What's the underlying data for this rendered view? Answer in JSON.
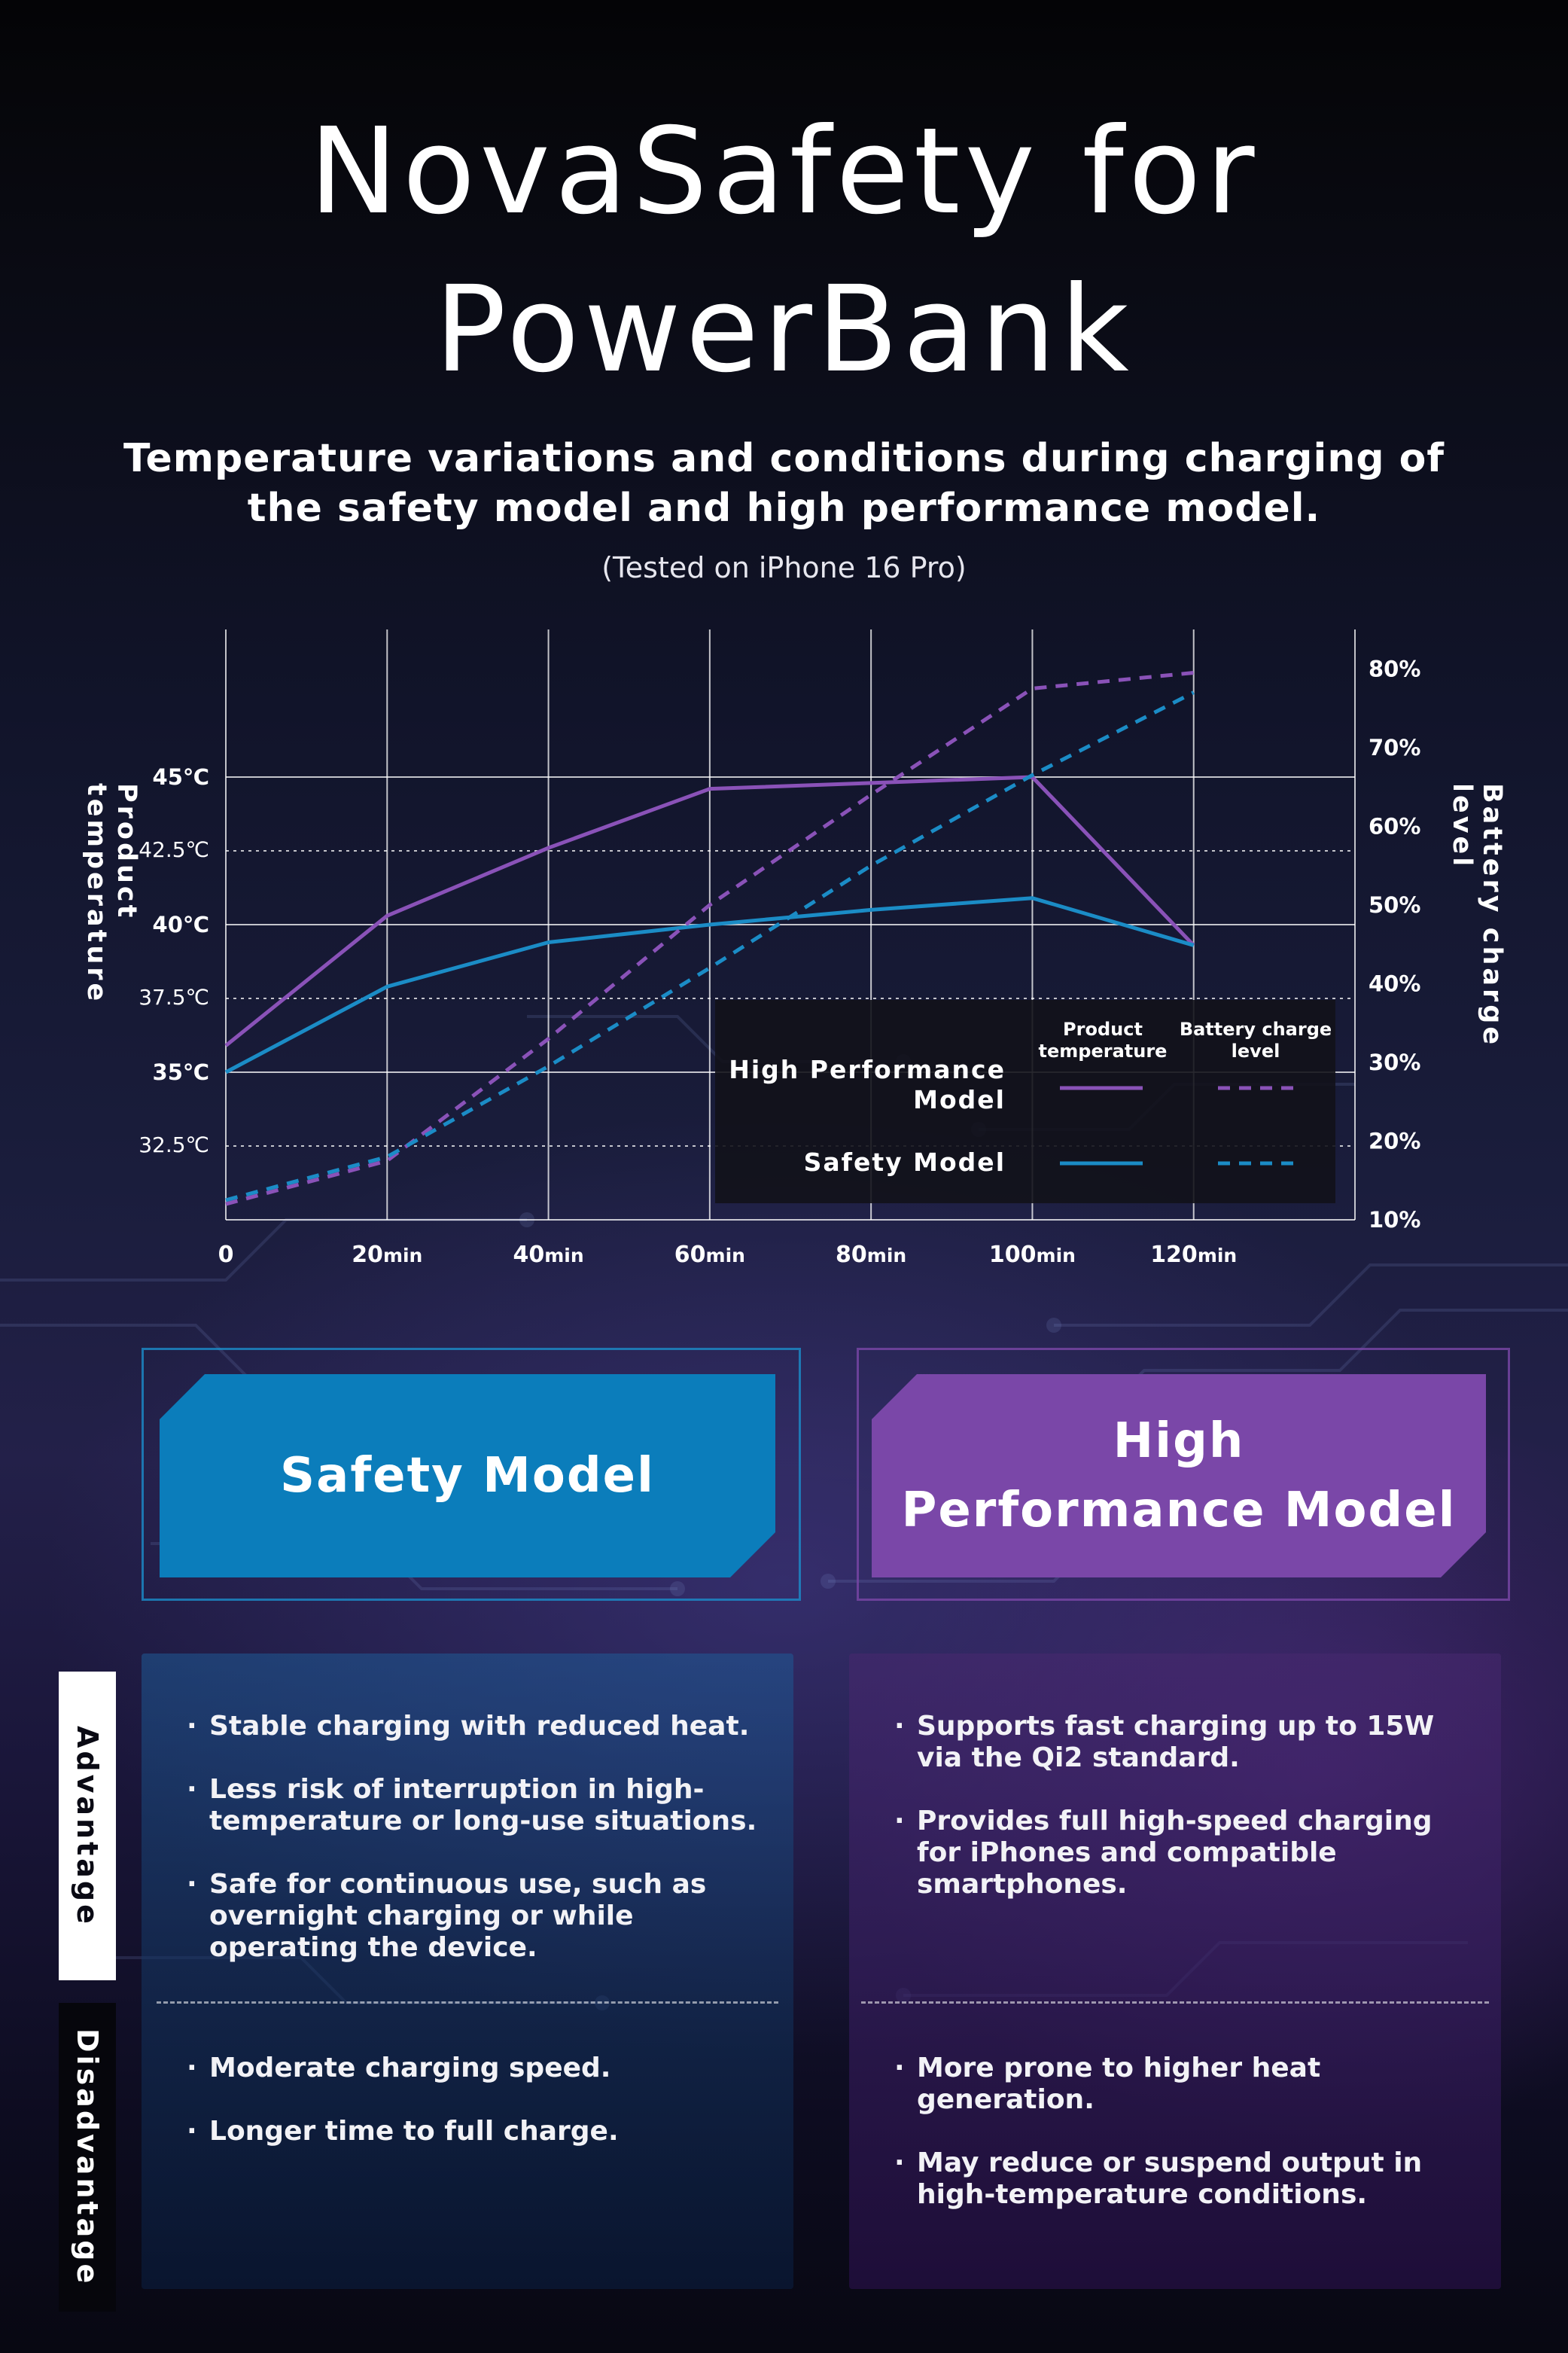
{
  "header": {
    "title_line1": "NovaSafety for",
    "title_line2": "PowerBank",
    "subtitle_line1": "Temperature variations and conditions during charging of",
    "subtitle_line2": "the safety model and high performance model.",
    "test_note": "(Tested on iPhone 16 Pro)"
  },
  "chart_data": {
    "type": "line",
    "x": [
      0,
      20,
      40,
      60,
      80,
      100,
      120
    ],
    "x_tick_labels": [
      {
        "num": "0",
        "unit": ""
      },
      {
        "num": "20",
        "unit": "min"
      },
      {
        "num": "40",
        "unit": "min"
      },
      {
        "num": "60",
        "unit": "min"
      },
      {
        "num": "80",
        "unit": "min"
      },
      {
        "num": "100",
        "unit": "min"
      },
      {
        "num": "120",
        "unit": "min"
      }
    ],
    "xlim": [
      0,
      140
    ],
    "left_axis": {
      "label": "Product temperature",
      "range": [
        30,
        50
      ],
      "ticks": [
        {
          "value": 45,
          "label": "45℃"
        },
        {
          "value": 42.5,
          "label": "42.5℃"
        },
        {
          "value": 40,
          "label": "40℃"
        },
        {
          "value": 37.5,
          "label": "37.5℃"
        },
        {
          "value": 35,
          "label": "35℃"
        },
        {
          "value": 32.5,
          "label": "32.5℃"
        }
      ]
    },
    "right_axis": {
      "label": "Battery charge level",
      "range": [
        10,
        85
      ],
      "ticks": [
        {
          "value": 80,
          "label": "80%"
        },
        {
          "value": 70,
          "label": "70%"
        },
        {
          "value": 60,
          "label": "60%"
        },
        {
          "value": 50,
          "label": "50%"
        },
        {
          "value": 40,
          "label": "40%"
        },
        {
          "value": 30,
          "label": "30%"
        },
        {
          "value": 20,
          "label": "20%"
        },
        {
          "value": 10,
          "label": "10%"
        }
      ]
    },
    "series": [
      {
        "name": "High Performance Model – Product temperature",
        "axis": "left",
        "style": "solid",
        "color": "#8a52b8",
        "values": [
          35.9,
          40.3,
          42.6,
          44.6,
          44.8,
          45.0,
          39.3
        ]
      },
      {
        "name": "Safety Model – Product temperature",
        "axis": "left",
        "style": "solid",
        "color": "#1b8cc6",
        "values": [
          35.0,
          37.9,
          39.4,
          40.0,
          40.5,
          40.9,
          39.3
        ]
      },
      {
        "name": "High Performance Model – Battery charge level",
        "axis": "right",
        "style": "dashed",
        "color": "#8a52b8",
        "values": [
          12.0,
          17.5,
          33.0,
          50.0,
          64.0,
          77.5,
          79.5
        ]
      },
      {
        "name": "Safety Model – Battery charge level",
        "axis": "right",
        "style": "dashed",
        "color": "#1b8cc6",
        "values": [
          12.5,
          18.0,
          29.5,
          42.0,
          55.0,
          66.5,
          77.0
        ]
      }
    ],
    "legend": {
      "col_temp": "Product temperature",
      "col_charge": "Battery charge level",
      "row_high_line1": "High Performance",
      "row_high_line2": "Model",
      "row_safety": "Safety Model",
      "placement": "bottom-right"
    }
  },
  "models": {
    "safety": {
      "label": "Safety Model",
      "color": "#0b7dbb"
    },
    "high_line1": "High",
    "high_line2": "Performance Model",
    "high_color": "#7a47a8"
  },
  "comparison": {
    "advantage_label": "Advantage",
    "disadvantage_label": "Disadvantage",
    "safety_advantages": [
      "Stable charging with reduced heat.",
      "Less risk of interruption in high-temperature or long-use situations.",
      "Safe for continuous use, such as overnight charging or while operating the device."
    ],
    "safety_disadvantages": [
      "Moderate charging speed.",
      "Longer time to full charge."
    ],
    "high_advantages": [
      "Supports fast charging up to 15W via the Qi2 standard.",
      "Provides full high-speed charging for iPhones and compatible smartphones."
    ],
    "high_disadvantages": [
      "More prone to higher heat generation.",
      "May reduce or suspend output in high-temperature conditions."
    ]
  }
}
